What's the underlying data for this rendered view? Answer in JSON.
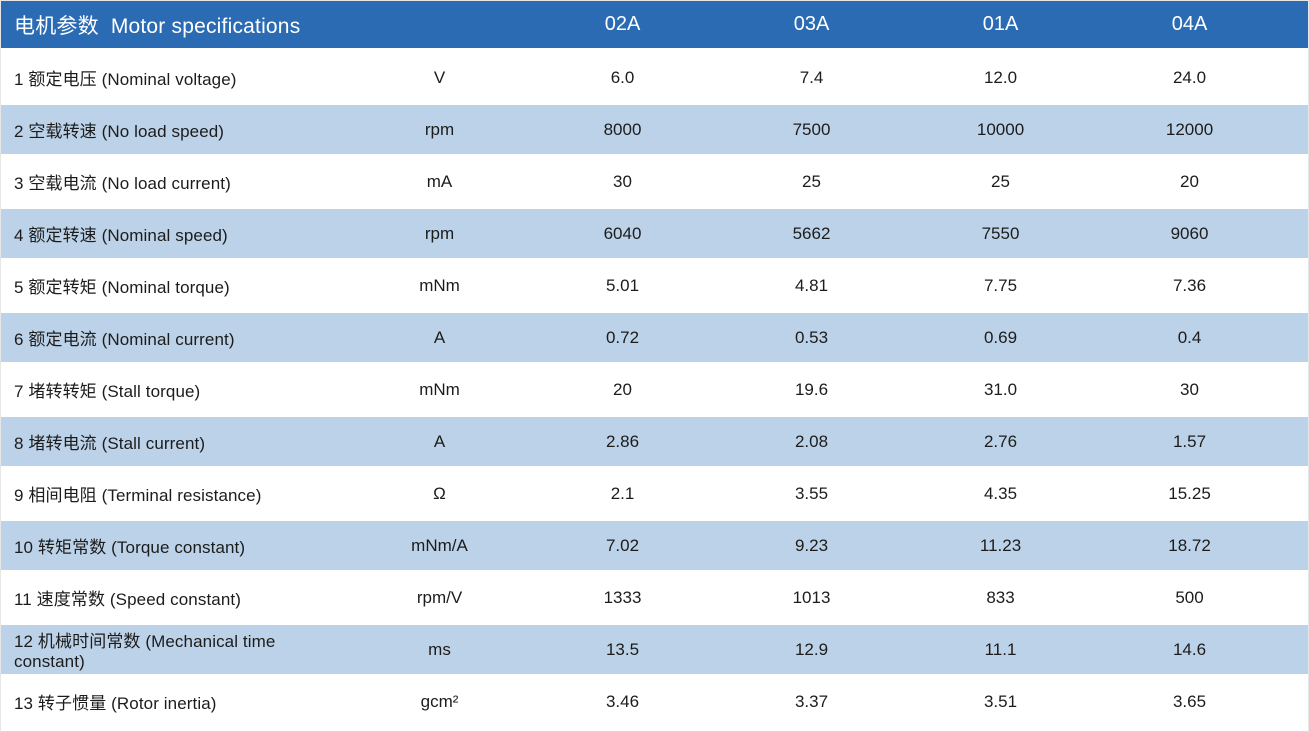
{
  "colors": {
    "header_bg": "#2A6BB4",
    "stripe_bg": "#BCD2E8",
    "header_text": "#FFFFFF",
    "body_text": "#1C1C1C"
  },
  "table": {
    "title_zh": "电机参数",
    "title_en": "Motor specifications",
    "columns": [
      "02A",
      "03A",
      "01A",
      "04A"
    ],
    "rows": [
      {
        "label": "1 额定电压 (Nominal voltage)",
        "unit": "V",
        "values": [
          "6.0",
          "7.4",
          "12.0",
          "24.0"
        ]
      },
      {
        "label": "2 空载转速 (No load speed)",
        "unit": "rpm",
        "values": [
          "8000",
          "7500",
          "10000",
          "12000"
        ]
      },
      {
        "label": "3 空载电流 (No load current)",
        "unit": "mA",
        "values": [
          "30",
          "25",
          "25",
          "20"
        ]
      },
      {
        "label": "4 额定转速 (Nominal speed)",
        "unit": "rpm",
        "values": [
          "6040",
          "5662",
          "7550",
          "9060"
        ]
      },
      {
        "label": "5 额定转矩 (Nominal torque)",
        "unit": "mNm",
        "values": [
          "5.01",
          "4.81",
          "7.75",
          "7.36"
        ]
      },
      {
        "label": "6 额定电流 (Nominal current)",
        "unit": "A",
        "values": [
          "0.72",
          "0.53",
          "0.69",
          "0.4"
        ]
      },
      {
        "label": "7 堵转转矩 (Stall torque)",
        "unit": "mNm",
        "values": [
          "20",
          "19.6",
          "31.0",
          "30"
        ]
      },
      {
        "label": "8 堵转电流 (Stall current)",
        "unit": "A",
        "values": [
          "2.86",
          "2.08",
          "2.76",
          "1.57"
        ]
      },
      {
        "label": "9 相间电阻 (Terminal resistance)",
        "unit": "Ω",
        "values": [
          "2.1",
          "3.55",
          "4.35",
          "15.25"
        ]
      },
      {
        "label": "10 转矩常数 (Torque constant)",
        "unit": "mNm/A",
        "values": [
          "7.02",
          "9.23",
          "11.23",
          "18.72"
        ]
      },
      {
        "label": "11 速度常数 (Speed constant)",
        "unit": "rpm/V",
        "values": [
          "1333",
          "1013",
          "833",
          "500"
        ]
      },
      {
        "label": "12 机械时间常数 (Mechanical time constant)",
        "unit": "ms",
        "values": [
          "13.5",
          "12.9",
          "11.1",
          "14.6"
        ]
      },
      {
        "label": "13 转子惯量 (Rotor inertia)",
        "unit": "gcm²",
        "values": [
          "3.46",
          "3.37",
          "3.51",
          "3.65"
        ]
      }
    ]
  }
}
